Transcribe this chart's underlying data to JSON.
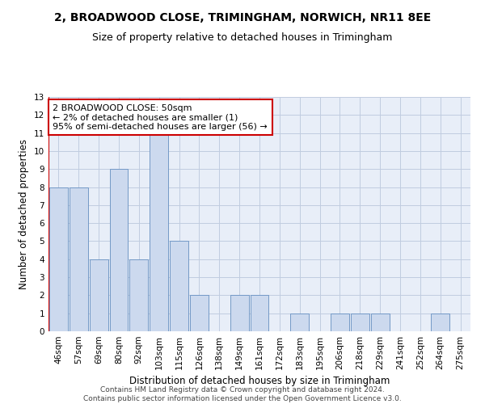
{
  "title": "2, BROADWOOD CLOSE, TRIMINGHAM, NORWICH, NR11 8EE",
  "subtitle": "Size of property relative to detached houses in Trimingham",
  "xlabel": "Distribution of detached houses by size in Trimingham",
  "ylabel": "Number of detached properties",
  "categories": [
    "46sqm",
    "57sqm",
    "69sqm",
    "80sqm",
    "92sqm",
    "103sqm",
    "115sqm",
    "126sqm",
    "138sqm",
    "149sqm",
    "161sqm",
    "172sqm",
    "183sqm",
    "195sqm",
    "206sqm",
    "218sqm",
    "229sqm",
    "241sqm",
    "252sqm",
    "264sqm",
    "275sqm"
  ],
  "values": [
    8,
    8,
    4,
    9,
    4,
    11,
    5,
    2,
    0,
    2,
    2,
    0,
    1,
    0,
    1,
    1,
    1,
    0,
    0,
    1,
    0
  ],
  "bar_color": "#ccd9ee",
  "bar_edge_color": "#7399c6",
  "annotation_box_text": "2 BROADWOOD CLOSE: 50sqm\n← 2% of detached houses are smaller (1)\n95% of semi-detached houses are larger (56) →",
  "annotation_box_color": "#ffffff",
  "annotation_box_edge_color": "#cc0000",
  "annotation_line_color": "#cc0000",
  "ylim": [
    0,
    13
  ],
  "yticks": [
    0,
    1,
    2,
    3,
    4,
    5,
    6,
    7,
    8,
    9,
    10,
    11,
    12,
    13
  ],
  "grid_color": "#c0cce0",
  "background_color": "#e8eef8",
  "footer_line1": "Contains HM Land Registry data © Crown copyright and database right 2024.",
  "footer_line2": "Contains public sector information licensed under the Open Government Licence v3.0.",
  "title_fontsize": 10,
  "subtitle_fontsize": 9,
  "axis_label_fontsize": 8.5,
  "tick_fontsize": 7.5,
  "annotation_fontsize": 8,
  "footer_fontsize": 6.5
}
